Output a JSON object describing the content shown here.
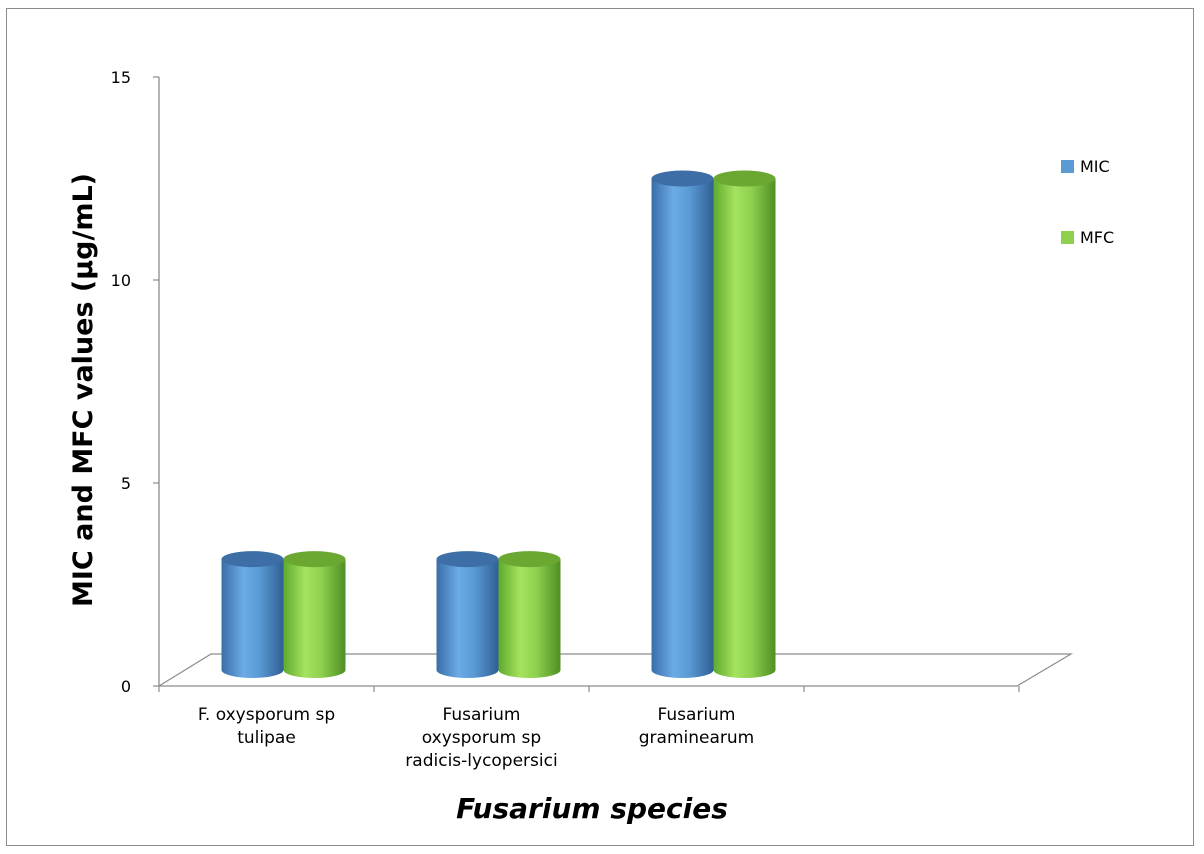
{
  "chart_data": {
    "type": "bar",
    "style": "3d-cylinder",
    "categories": [
      [
        "F. oxysporum sp",
        "tulipae"
      ],
      [
        "Fusarium",
        "oxysporum sp",
        "radicis-lycopersici"
      ],
      [
        "Fusarium",
        "graminearum"
      ]
    ],
    "series": [
      {
        "name": "MIC",
        "values": [
          3.125,
          3.125,
          12.5
        ],
        "color": "#5b9bd5"
      },
      {
        "name": "MFC",
        "values": [
          3.125,
          3.125,
          12.5
        ],
        "color": "#8fd14f"
      }
    ],
    "ylabel": "MIC and MFC values (µg/mL)",
    "xlabel": "Fusarium species",
    "ylim": [
      0,
      15
    ],
    "yticks": [
      "0",
      "5",
      "10",
      "15"
    ],
    "legend_position": "right",
    "grid": false
  }
}
